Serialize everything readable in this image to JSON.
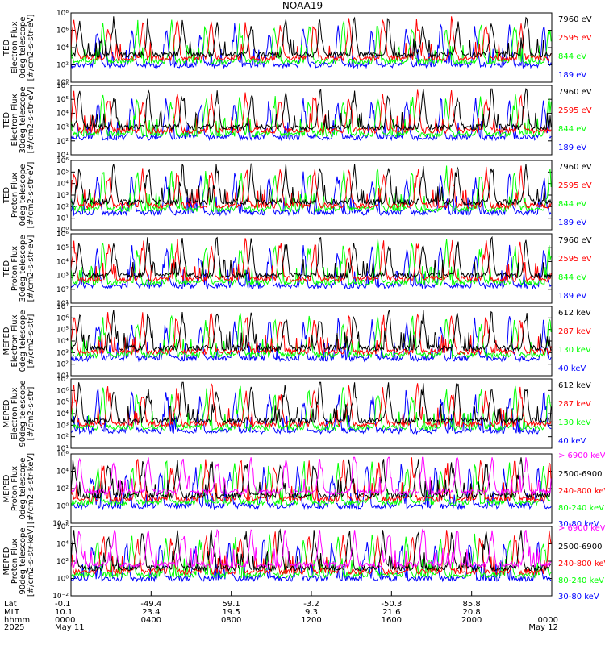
{
  "title": "NOAA19",
  "colors": {
    "blue": "#0000ff",
    "red": "#ff0000",
    "green": "#00ff00",
    "black": "#000000",
    "magenta": "#ff00ff"
  },
  "chart_data": [
    {
      "type": "line",
      "id": "ted-e-0",
      "ylabel": [
        "TED",
        "Electron Flux",
        "0deg telescope",
        "[#/cm2-s-str-eV]"
      ],
      "yticks": [
        "10⁰",
        "10²",
        "10⁴",
        "10⁶",
        "10⁸"
      ],
      "ylim_exp": [
        0,
        8
      ],
      "series": [
        {
          "name": "7960 eV",
          "color": "#000000"
        },
        {
          "name": "2595 eV",
          "color": "#ff0000"
        },
        {
          "name": "844 eV",
          "color": "#00ff00"
        },
        {
          "name": "189 eV",
          "color": "#0000ff"
        }
      ]
    },
    {
      "type": "line",
      "id": "ted-e-30",
      "ylabel": [
        "TED",
        "Electron Flux",
        "30deg telescope",
        "[#/cm2-s-str-eV]"
      ],
      "yticks": [
        "10¹",
        "10²",
        "10³",
        "10⁴",
        "10⁵",
        "10⁶"
      ],
      "ylim_exp": [
        0,
        6
      ],
      "series": [
        {
          "name": "7960 eV",
          "color": "#000000"
        },
        {
          "name": "2595 eV",
          "color": "#ff0000"
        },
        {
          "name": "844 eV",
          "color": "#00ff00"
        },
        {
          "name": "189 eV",
          "color": "#0000ff"
        }
      ]
    },
    {
      "type": "line",
      "id": "ted-p-0",
      "ylabel": [
        "TED",
        "Proton Flux",
        "0deg telescope",
        "[#/cm2-s-str-eV]"
      ],
      "yticks": [
        "10⁰",
        "10¹",
        "10²",
        "10³",
        "10⁴",
        "10⁵",
        "10⁶"
      ],
      "ylim_exp": [
        0,
        6
      ],
      "series": [
        {
          "name": "7960 eV",
          "color": "#000000"
        },
        {
          "name": "2595 eV",
          "color": "#ff0000"
        },
        {
          "name": "844 eV",
          "color": "#00ff00"
        },
        {
          "name": "189 eV",
          "color": "#0000ff"
        }
      ]
    },
    {
      "type": "line",
      "id": "ted-p-30",
      "ylabel": [
        "TED",
        "Proton Flux",
        "30deg telescope",
        "[#/cm2-s-str-eV]"
      ],
      "yticks": [
        "10¹",
        "10²",
        "10³",
        "10⁴",
        "10⁵",
        "10⁶"
      ],
      "ylim_exp": [
        0,
        6
      ],
      "series": [
        {
          "name": "7960 eV",
          "color": "#000000"
        },
        {
          "name": "2595 eV",
          "color": "#ff0000"
        },
        {
          "name": "844 eV",
          "color": "#00ff00"
        },
        {
          "name": "189 eV",
          "color": "#0000ff"
        }
      ]
    },
    {
      "type": "line",
      "id": "meped-e-0",
      "ylabel": [
        "MEPED",
        "Electron Flux",
        "0deg telescope",
        "[#/cm2-s-str]"
      ],
      "yticks": [
        "10¹",
        "10²",
        "10³",
        "10⁴",
        "10⁵",
        "10⁶",
        "10⁷"
      ],
      "ylim_exp": [
        1,
        7
      ],
      "series": [
        {
          "name": "612 keV",
          "color": "#000000"
        },
        {
          "name": "287 keV",
          "color": "#ff0000"
        },
        {
          "name": "130 keV",
          "color": "#00ff00"
        },
        {
          "name": "40 keV",
          "color": "#0000ff"
        }
      ]
    },
    {
      "type": "line",
      "id": "meped-e-90",
      "ylabel": [
        "MEPED",
        "Electron Flux",
        "90deg telescope",
        "[#/cm2-s-str]"
      ],
      "yticks": [
        "10¹",
        "10²",
        "10³",
        "10⁴",
        "10⁵",
        "10⁶",
        "10⁷"
      ],
      "ylim_exp": [
        1,
        7
      ],
      "series": [
        {
          "name": "612 keV",
          "color": "#000000"
        },
        {
          "name": "287 keV",
          "color": "#ff0000"
        },
        {
          "name": "130 keV",
          "color": "#00ff00"
        },
        {
          "name": "40 keV",
          "color": "#0000ff"
        }
      ]
    },
    {
      "type": "line",
      "id": "meped-p-0",
      "ylabel": [
        "MEPED",
        "Proton Flux",
        "0deg telescope",
        "[#/cm2-s-str-keV]"
      ],
      "yticks": [
        "10⁻²",
        "10⁰",
        "10²",
        "10⁴",
        "10⁶"
      ],
      "ylim_exp": [
        -2,
        6
      ],
      "series": [
        {
          "name": "> 6900 keV",
          "color": "#ff00ff"
        },
        {
          "name": "2500-6900",
          "color": "#000000"
        },
        {
          "name": "240-800 keV",
          "color": "#ff0000"
        },
        {
          "name": "80-240 keV",
          "color": "#00ff00"
        },
        {
          "name": "30-80 keV",
          "color": "#0000ff"
        }
      ]
    },
    {
      "type": "line",
      "id": "meped-p-90",
      "ylabel": [
        "MEPED",
        "Proton Flux",
        "90deg telescope",
        "[#/cm2-s-str-keV]"
      ],
      "yticks": [
        "10⁻²",
        "10⁰",
        "10²",
        "10⁴",
        "10⁶"
      ],
      "ylim_exp": [
        -2,
        6
      ],
      "series": [
        {
          "name": "> 6900 keV",
          "color": "#ff00ff"
        },
        {
          "name": "2500-6900",
          "color": "#000000"
        },
        {
          "name": "240-800 keV",
          "color": "#ff0000"
        },
        {
          "name": "80-240 keV",
          "color": "#00ff00"
        },
        {
          "name": "30-80 keV",
          "color": "#0000ff"
        }
      ]
    }
  ],
  "x_axis": {
    "row_labels": [
      "Lat",
      "MLT",
      "hhmm",
      "2025"
    ],
    "ticks": [
      {
        "lat": "-0.1",
        "mlt": "10.1",
        "hhmm": "0000",
        "date": "May 11"
      },
      {
        "lat": "-49.4",
        "mlt": "23.4",
        "hhmm": "0400",
        "date": ""
      },
      {
        "lat": "59.1",
        "mlt": "19.5",
        "hhmm": "0800",
        "date": ""
      },
      {
        "lat": "-3.2",
        "mlt": "9.3",
        "hhmm": "1200",
        "date": ""
      },
      {
        "lat": "-50.3",
        "mlt": "21.6",
        "hhmm": "1600",
        "date": ""
      },
      {
        "lat": "85.8",
        "mlt": "20.8",
        "hhmm": "2000",
        "date": ""
      },
      {
        "lat": "",
        "mlt": "",
        "hhmm": "0000",
        "date": "May 12"
      }
    ]
  }
}
